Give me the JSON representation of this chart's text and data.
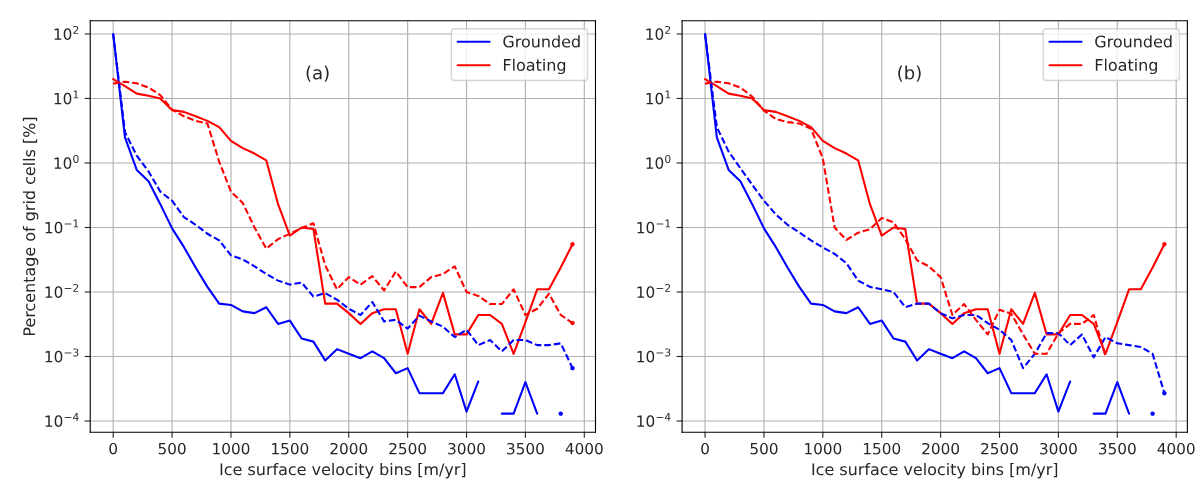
{
  "chart_data": [
    {
      "type": "line",
      "xlabel": "Ice surface velocity bins [m/yr]",
      "ylabel": "Percentage of grid cells [%]",
      "annotations": [
        "(a)"
      ],
      "x": [
        0,
        100,
        200,
        300,
        400,
        500,
        600,
        700,
        800,
        900,
        1000,
        1100,
        1200,
        1300,
        1400,
        1500,
        1600,
        1700,
        1800,
        1900,
        2000,
        2100,
        2200,
        2300,
        2400,
        2500,
        2600,
        2700,
        2800,
        2900,
        3000,
        3100,
        3200,
        3300,
        3400,
        3500,
        3600,
        3700,
        3800,
        3900
      ],
      "series": [
        {
          "name": "Grounded",
          "color": "#0000ff",
          "line_style": "solid",
          "values": [
            100,
            2.5,
            0.78,
            0.52,
            0.23,
            0.097,
            0.05,
            0.024,
            0.012,
            0.0066,
            0.0063,
            0.005,
            0.0047,
            0.0058,
            0.0032,
            0.0036,
            0.0019,
            0.0017,
            0.00087,
            0.0013,
            0.0011,
            0.00094,
            0.0012,
            0.00094,
            0.00055,
            0.00066,
            0.00027,
            0.00027,
            0.00027,
            0.00053,
            0.00014,
            0.00041,
            null,
            0.00013,
            0.00013,
            0.0004,
            0.00013,
            null,
            0.00013,
            null
          ]
        },
        {
          "name": "Floating",
          "color": "#ff0000",
          "line_style": "solid",
          "values": [
            20,
            15.6,
            11.9,
            11,
            10,
            6.6,
            6.2,
            5.3,
            4.5,
            3.6,
            2.2,
            1.7,
            1.4,
            1.1,
            0.23,
            0.075,
            0.1,
            0.095,
            0.0066,
            0.0066,
            0.0047,
            0.0032,
            0.0047,
            0.0054,
            0.0054,
            0.0011,
            0.0054,
            0.0032,
            0.0097,
            0.0022,
            0.0022,
            0.0044,
            0.0044,
            0.0032,
            0.0011,
            0.0034,
            0.011,
            0.011,
            0.024,
            0.055
          ]
        },
        {
          "color": "#0000ff",
          "line_style": "dashed",
          "values": [
            100,
            3,
            1.3,
            0.74,
            0.36,
            0.26,
            0.145,
            0.11,
            0.08,
            0.063,
            0.037,
            0.032,
            0.025,
            0.019,
            0.015,
            0.013,
            0.014,
            0.0085,
            0.0096,
            0.0076,
            0.0055,
            0.0044,
            0.007,
            0.0035,
            0.0037,
            0.0027,
            0.0043,
            0.0035,
            0.0029,
            0.002,
            0.0026,
            0.0015,
            0.0018,
            0.0012,
            0.0018,
            0.0018,
            0.0015,
            0.0015,
            0.0016,
            0.00066
          ]
        },
        {
          "color": "#ff0000",
          "line_style": "dashed",
          "values": [
            17,
            18.2,
            17.2,
            14.8,
            11.3,
            6.7,
            5.3,
            4.5,
            4.1,
            1.05,
            0.36,
            0.24,
            0.1,
            0.047,
            0.066,
            0.08,
            0.098,
            0.116,
            0.026,
            0.011,
            0.017,
            0.013,
            0.0176,
            0.0106,
            0.0207,
            0.0119,
            0.0119,
            0.017,
            0.019,
            0.025,
            0.01,
            0.0087,
            0.0065,
            0.0065,
            0.011,
            0.0044,
            0.0055,
            0.0094,
            0.0044,
            0.0033
          ]
        }
      ],
      "xlim": [
        -195,
        4095
      ],
      "xticks": [
        0,
        500,
        1000,
        1500,
        2000,
        2500,
        3000,
        3500,
        4000
      ],
      "ylim": [
        6.7e-05,
        160
      ],
      "yticks": [
        {
          "value": 0.0001,
          "label": "10$^{−4}$"
        },
        {
          "value": 0.001,
          "label": "10$^{−3}$"
        },
        {
          "value": 0.01,
          "label": "10$^{−2}$"
        },
        {
          "value": 0.1,
          "label": "10$^{−1}$"
        },
        {
          "value": 1,
          "label": "10$^{0}$"
        },
        {
          "value": 10,
          "label": "10$^{1}$"
        },
        {
          "value": 100,
          "label": "10$^{2}$"
        }
      ],
      "log": "y",
      "grid": true,
      "legend": "top right"
    },
    {
      "type": "line",
      "xlabel": "Ice surface velocity bins [m/yr]",
      "annotations": [
        "(b)"
      ],
      "x": [
        0,
        100,
        200,
        300,
        400,
        500,
        600,
        700,
        800,
        900,
        1000,
        1100,
        1200,
        1300,
        1400,
        1500,
        1600,
        1700,
        1800,
        1900,
        2000,
        2100,
        2200,
        2300,
        2400,
        2500,
        2600,
        2700,
        2800,
        2900,
        3000,
        3100,
        3200,
        3300,
        3400,
        3500,
        3600,
        3700,
        3800,
        3900
      ],
      "series": [
        {
          "name": "Grounded",
          "color": "#0000ff",
          "line_style": "solid",
          "values": [
            100,
            2.5,
            0.78,
            0.52,
            0.23,
            0.097,
            0.05,
            0.024,
            0.012,
            0.0066,
            0.0063,
            0.005,
            0.0047,
            0.0058,
            0.0032,
            0.0036,
            0.0019,
            0.0017,
            0.00087,
            0.0013,
            0.0011,
            0.00094,
            0.0012,
            0.00094,
            0.00055,
            0.00066,
            0.00027,
            0.00027,
            0.00027,
            0.00053,
            0.00014,
            0.00041,
            null,
            0.00013,
            0.00013,
            0.0004,
            0.00013,
            null,
            0.00013,
            null
          ]
        },
        {
          "name": "Floating",
          "color": "#ff0000",
          "line_style": "solid",
          "values": [
            20,
            15.6,
            11.9,
            11,
            10,
            6.6,
            6.2,
            5.3,
            4.5,
            3.6,
            2.2,
            1.7,
            1.4,
            1.1,
            0.23,
            0.075,
            0.1,
            0.095,
            0.0066,
            0.0066,
            0.0047,
            0.0032,
            0.0047,
            0.0054,
            0.0054,
            0.0011,
            0.0054,
            0.0032,
            0.0097,
            0.0022,
            0.0022,
            0.0044,
            0.0044,
            0.0032,
            0.0011,
            0.0034,
            0.011,
            0.011,
            0.024,
            0.055
          ]
        },
        {
          "color": "#0000ff",
          "line_style": "dashed",
          "values": [
            100,
            3.6,
            1.5,
            0.83,
            0.46,
            0.26,
            0.16,
            0.11,
            0.084,
            0.063,
            0.049,
            0.039,
            0.028,
            0.015,
            0.012,
            0.011,
            0.01,
            0.0058,
            0.0066,
            0.0066,
            0.0047,
            0.0039,
            0.0044,
            0.0044,
            0.0033,
            0.0026,
            0.0018,
            0.00066,
            0.0011,
            0.0023,
            0.0023,
            0.0015,
            0.0022,
            0.00097,
            0.002,
            0.0016,
            0.0015,
            0.0014,
            0.0011,
            0.00027
          ]
        },
        {
          "color": "#ff0000",
          "line_style": "dashed",
          "values": [
            17,
            18.2,
            17.2,
            14.8,
            10.7,
            6.5,
            4.8,
            4.3,
            4.1,
            3.4,
            1.17,
            0.1,
            0.064,
            0.083,
            0.094,
            0.14,
            0.12,
            0.066,
            0.031,
            0.025,
            0.017,
            0.0044,
            0.0065,
            0.0037,
            0.0022,
            0.0053,
            0.0046,
            0.0022,
            0.0011,
            0.0011,
            0.0023,
            0.0032,
            0.0032,
            0.0044,
            0.001,
            null,
            null,
            null,
            null,
            null
          ]
        }
      ],
      "xlim": [
        -195,
        4095
      ],
      "xticks": [
        0,
        500,
        1000,
        1500,
        2000,
        2500,
        3000,
        3500,
        4000
      ],
      "ylim": [
        6.7e-05,
        160
      ],
      "yticks": [
        {
          "value": 0.0001,
          "label": "10$^{−4}$"
        },
        {
          "value": 0.001,
          "label": "10$^{−3}$"
        },
        {
          "value": 0.01,
          "label": "10$^{−2}$"
        },
        {
          "value": 0.1,
          "label": "10$^{−1}$"
        },
        {
          "value": 1,
          "label": "10$^{0}$"
        },
        {
          "value": 10,
          "label": "10$^{1}$"
        },
        {
          "value": 100,
          "label": "10$^{2}$"
        }
      ],
      "log": "y",
      "grid": true,
      "legend": "top right"
    }
  ]
}
